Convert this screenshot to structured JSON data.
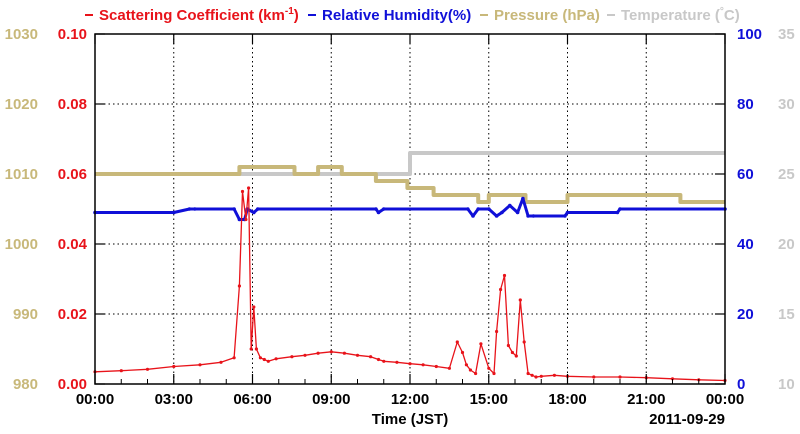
{
  "chart_data": {
    "type": "line",
    "date_label": "2011-09-29",
    "xlabel": "Time (JST)",
    "x_ticks": [
      "00:00",
      "03:00",
      "06:00",
      "09:00",
      "12:00",
      "15:00",
      "18:00",
      "21:00",
      "00:00"
    ],
    "xlim_hours": [
      0,
      24
    ],
    "grid": true,
    "legend_position": "top",
    "series": [
      {
        "name": "Scattering Coefficient (km",
        "name_sup": "-1",
        "name_suffix": ")",
        "color": "#e8131a",
        "axis": "left-inner",
        "ylim": [
          0,
          0.1
        ],
        "tick_labels": [
          "0.00",
          "0.02",
          "0.04",
          "0.06",
          "0.08",
          "0.10"
        ],
        "x_hours": [
          0.0,
          1.0,
          2.0,
          3.0,
          4.0,
          4.8,
          5.3,
          5.5,
          5.62,
          5.75,
          5.85,
          5.95,
          6.05,
          6.15,
          6.3,
          6.45,
          6.6,
          6.9,
          7.5,
          8.0,
          8.5,
          9.0,
          9.5,
          10.0,
          10.5,
          10.8,
          11.0,
          11.5,
          12.0,
          12.5,
          13.0,
          13.5,
          13.8,
          14.0,
          14.15,
          14.3,
          14.5,
          14.7,
          15.0,
          15.2,
          15.3,
          15.45,
          15.6,
          15.75,
          15.9,
          16.05,
          16.2,
          16.35,
          16.5,
          16.65,
          16.8,
          17.0,
          17.5,
          18.0,
          19.0,
          20.0,
          21.0,
          22.0,
          23.0,
          24.0
        ],
        "values": [
          0.0035,
          0.0038,
          0.0042,
          0.005,
          0.0055,
          0.0062,
          0.0075,
          0.028,
          0.055,
          0.047,
          0.056,
          0.01,
          0.022,
          0.01,
          0.0075,
          0.007,
          0.0065,
          0.0072,
          0.0078,
          0.0082,
          0.0088,
          0.0092,
          0.0088,
          0.0082,
          0.0078,
          0.007,
          0.0065,
          0.0062,
          0.0058,
          0.0055,
          0.005,
          0.0045,
          0.012,
          0.009,
          0.0055,
          0.004,
          0.003,
          0.0115,
          0.0045,
          0.003,
          0.015,
          0.027,
          0.031,
          0.011,
          0.009,
          0.008,
          0.024,
          0.012,
          0.003,
          0.0025,
          0.002,
          0.0022,
          0.0025,
          0.0022,
          0.002,
          0.002,
          0.0018,
          0.0015,
          0.0012,
          0.001
        ]
      },
      {
        "name": "Relative Humidity(%)",
        "color": "#1010d8",
        "axis": "right-inner",
        "ylim": [
          0,
          100
        ],
        "tick_labels": [
          "0",
          "20",
          "40",
          "60",
          "80",
          "100"
        ],
        "x_hours": [
          0.0,
          3.0,
          3.6,
          3.8,
          5.3,
          5.5,
          5.7,
          5.8,
          6.05,
          6.2,
          10.7,
          10.8,
          11.0,
          14.2,
          14.4,
          14.6,
          15.0,
          15.3,
          15.5,
          15.8,
          16.1,
          16.3,
          16.5,
          16.7,
          17.9,
          18.0,
          19.9,
          20.0,
          24.0
        ],
        "values": [
          49,
          49,
          50,
          50,
          50,
          47,
          47,
          50,
          49,
          50,
          50,
          49,
          50,
          50,
          48,
          50,
          50,
          48,
          49,
          51,
          49,
          53,
          48,
          48,
          48,
          49,
          49,
          50,
          50
        ]
      },
      {
        "name": "Pressure (hPa)",
        "color": "#c8b87a",
        "axis": "left-outer",
        "ylim": [
          980,
          1030
        ],
        "tick_labels": [
          "980",
          "990",
          "1000",
          "1010",
          "1020",
          "1030"
        ],
        "x_hours": [
          0.0,
          5.5,
          5.5,
          7.6,
          7.6,
          8.5,
          8.5,
          9.4,
          9.4,
          10.7,
          10.7,
          11.9,
          11.9,
          12.9,
          12.9,
          14.6,
          14.6,
          15.0,
          15.0,
          16.4,
          16.4,
          18.0,
          18.0,
          22.3,
          22.3,
          24.0
        ],
        "values": [
          1010,
          1010,
          1011,
          1011,
          1010,
          1010,
          1011,
          1011,
          1010,
          1010,
          1009,
          1009,
          1008,
          1008,
          1007,
          1007,
          1006,
          1006,
          1007,
          1007,
          1006,
          1006,
          1007,
          1007,
          1006,
          1006
        ]
      },
      {
        "name": "Temperature (",
        "name_sup": "°",
        "name_suffix": "C)",
        "color": "#c8c8c8",
        "axis": "right-outer",
        "ylim": [
          10,
          35
        ],
        "tick_labels": [
          "10",
          "15",
          "20",
          "25",
          "30",
          "35"
        ],
        "x_hours": [
          0.0,
          12.0,
          12.0,
          24.0
        ],
        "values": [
          25,
          25,
          26.5,
          26.5
        ]
      }
    ]
  }
}
